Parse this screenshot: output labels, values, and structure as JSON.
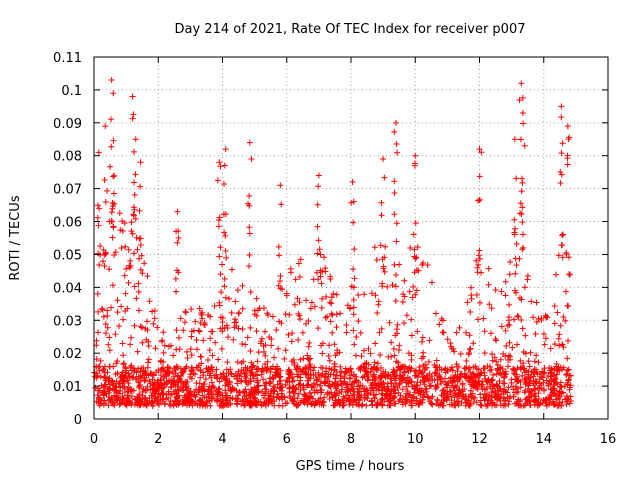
{
  "chart_data": {
    "type": "scatter",
    "title": "Day 214 of 2021, Rate Of TEC Index for receiver p007",
    "xlabel": "GPS time / hours",
    "ylabel": "ROTI / TECUs",
    "xlim": [
      0,
      16
    ],
    "ylim": [
      0,
      0.11
    ],
    "xticks": [
      "0",
      "2",
      "4",
      "6",
      "8",
      "10",
      "12",
      "14",
      "16"
    ],
    "yticks": [
      "0",
      "0.01",
      "0.02",
      "0.03",
      "0.04",
      "0.05",
      "0.06",
      "0.07",
      "0.08",
      "0.09",
      "0.1",
      "0.11"
    ],
    "grid": true,
    "marker": "+",
    "color": "#ff0000",
    "data_end_hour": 14.85,
    "baseline_band": [
      0.004,
      0.016
    ],
    "activity_profile": [
      {
        "x": 0.0,
        "typical_max": 0.04
      },
      {
        "x": 0.3,
        "typical_max": 0.06
      },
      {
        "x": 0.6,
        "typical_max": 0.07
      },
      {
        "x": 1.0,
        "typical_max": 0.06
      },
      {
        "x": 1.5,
        "typical_max": 0.055
      },
      {
        "x": 2.0,
        "typical_max": 0.03
      },
      {
        "x": 2.5,
        "typical_max": 0.025
      },
      {
        "x": 3.0,
        "typical_max": 0.04
      },
      {
        "x": 3.5,
        "typical_max": 0.03
      },
      {
        "x": 4.0,
        "typical_max": 0.05
      },
      {
        "x": 4.5,
        "typical_max": 0.045
      },
      {
        "x": 5.0,
        "typical_max": 0.04
      },
      {
        "x": 5.5,
        "typical_max": 0.03
      },
      {
        "x": 6.0,
        "typical_max": 0.045
      },
      {
        "x": 6.5,
        "typical_max": 0.05
      },
      {
        "x": 7.0,
        "typical_max": 0.055
      },
      {
        "x": 7.5,
        "typical_max": 0.04
      },
      {
        "x": 8.0,
        "typical_max": 0.035
      },
      {
        "x": 8.5,
        "typical_max": 0.045
      },
      {
        "x": 9.0,
        "typical_max": 0.06
      },
      {
        "x": 9.5,
        "typical_max": 0.05
      },
      {
        "x": 10.0,
        "typical_max": 0.055
      },
      {
        "x": 10.5,
        "typical_max": 0.045
      },
      {
        "x": 11.0,
        "typical_max": 0.03
      },
      {
        "x": 11.5,
        "typical_max": 0.03
      },
      {
        "x": 12.0,
        "typical_max": 0.055
      },
      {
        "x": 12.5,
        "typical_max": 0.04
      },
      {
        "x": 13.0,
        "typical_max": 0.05
      },
      {
        "x": 13.5,
        "typical_max": 0.05
      },
      {
        "x": 14.0,
        "typical_max": 0.03
      },
      {
        "x": 14.5,
        "typical_max": 0.055
      },
      {
        "x": 14.85,
        "typical_max": 0.06
      }
    ],
    "peaks": [
      {
        "x": 0.15,
        "y": 0.081
      },
      {
        "x": 0.35,
        "y": 0.089
      },
      {
        "x": 0.55,
        "y": 0.103
      },
      {
        "x": 0.6,
        "y": 0.099
      },
      {
        "x": 1.2,
        "y": 0.098
      },
      {
        "x": 1.3,
        "y": 0.085
      },
      {
        "x": 1.45,
        "y": 0.078
      },
      {
        "x": 2.6,
        "y": 0.063
      },
      {
        "x": 3.9,
        "y": 0.078
      },
      {
        "x": 4.1,
        "y": 0.082
      },
      {
        "x": 4.85,
        "y": 0.084
      },
      {
        "x": 5.8,
        "y": 0.071
      },
      {
        "x": 7.0,
        "y": 0.074
      },
      {
        "x": 8.05,
        "y": 0.072
      },
      {
        "x": 9.0,
        "y": 0.079
      },
      {
        "x": 9.4,
        "y": 0.09
      },
      {
        "x": 10.0,
        "y": 0.08
      },
      {
        "x": 12.0,
        "y": 0.082
      },
      {
        "x": 13.1,
        "y": 0.085
      },
      {
        "x": 13.3,
        "y": 0.102
      },
      {
        "x": 13.35,
        "y": 0.093
      },
      {
        "x": 14.55,
        "y": 0.095
      },
      {
        "x": 14.75,
        "y": 0.089
      }
    ]
  }
}
